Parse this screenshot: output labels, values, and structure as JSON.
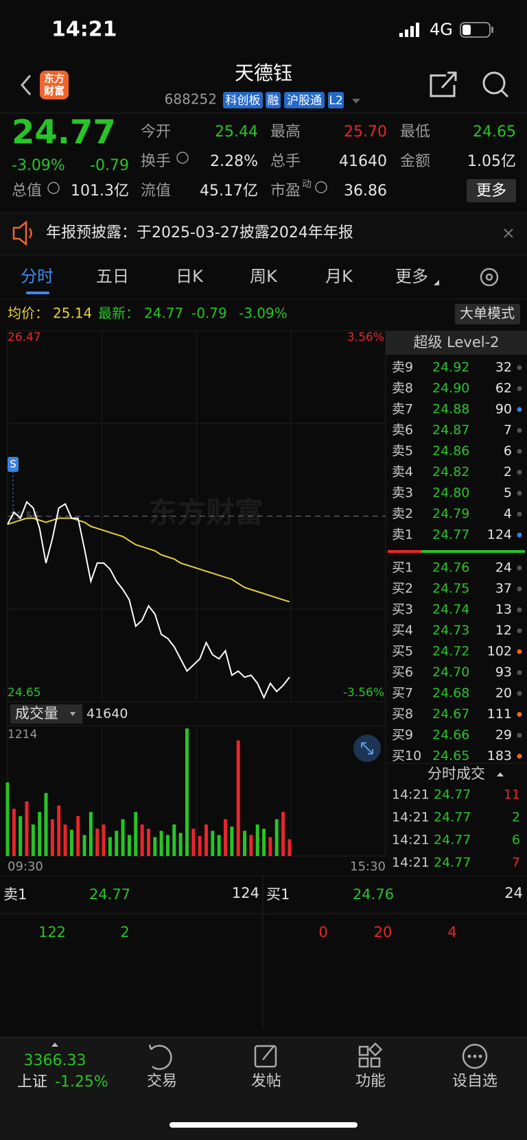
{
  "status_bar": {
    "time": "14:21",
    "network": "4G"
  },
  "header": {
    "logo": [
      "东方",
      "财富"
    ],
    "title": "天德钰",
    "code": "688252",
    "tags": [
      "科创板",
      "融",
      "沪股通",
      "L2"
    ]
  },
  "quote": {
    "price": "24.77",
    "change_pct": "-3.09%",
    "change": "-0.79",
    "left_stat": {
      "label": "总值",
      "value": "101.3亿"
    },
    "stats": [
      {
        "label": "今开",
        "value": "25.44",
        "color": "#27c427"
      },
      {
        "label": "最高",
        "value": "25.70",
        "color": "#e8262b"
      },
      {
        "label": "最低",
        "value": "24.65",
        "color": "#27c427"
      },
      {
        "label": "换手",
        "value": "2.28%",
        "color": "#e6e6e6"
      },
      {
        "label": "总手",
        "value": "41640",
        "color": "#e6e6e6"
      },
      {
        "label": "金额",
        "value": "1.05亿",
        "color": "#e6e6e6"
      },
      {
        "label": "流值",
        "value": "45.17亿",
        "color": "#e6e6e6"
      },
      {
        "label": "市盈",
        "value": "36.86",
        "color": "#e6e6e6",
        "superscript": "动"
      }
    ],
    "more_button": "更多"
  },
  "notice": "年报预披露：于2025-03-27披露2024年年报",
  "tabs": [
    "分时",
    "五日",
    "日K",
    "周K",
    "月K",
    "更多"
  ],
  "info": {
    "avg_label": "均价：",
    "avg": "25.14",
    "latest_label": "最新：",
    "latest": "24.77",
    "change": "-0.79",
    "change_pct": "-3.09%",
    "mode_button": "大单模式"
  },
  "intraday": {
    "price_top": 26.47,
    "price_bottom": 24.65,
    "prev_close": 25.56,
    "pct_top": "3.56%",
    "pct_bottom": "-3.56%",
    "marker": "S",
    "watermark": "东方财富",
    "price": [
      25.52,
      25.58,
      25.55,
      25.63,
      25.6,
      25.5,
      25.33,
      25.45,
      25.6,
      25.62,
      25.55,
      25.55,
      25.4,
      25.24,
      25.33,
      25.33,
      25.3,
      25.24,
      25.2,
      25.15,
      25.02,
      25.05,
      25.12,
      25.08,
      24.98,
      24.96,
      24.92,
      24.86,
      24.8,
      24.83,
      24.86,
      24.94,
      24.88,
      24.86,
      24.9,
      24.78,
      24.8,
      24.77,
      24.78,
      24.74,
      24.67,
      24.74,
      24.7,
      24.73,
      24.77
    ],
    "avg": [
      25.52,
      25.53,
      25.54,
      25.55,
      25.55,
      25.54,
      25.53,
      25.54,
      25.55,
      25.55,
      25.55,
      25.54,
      25.53,
      25.51,
      25.5,
      25.49,
      25.48,
      25.47,
      25.46,
      25.44,
      25.42,
      25.41,
      25.4,
      25.39,
      25.37,
      25.36,
      25.35,
      25.33,
      25.32,
      25.31,
      25.3,
      25.29,
      25.28,
      25.27,
      25.26,
      25.25,
      25.23,
      25.21,
      25.2,
      25.19,
      25.18,
      25.17,
      25.16,
      25.15,
      25.14
    ]
  },
  "volume": {
    "label": "成交量",
    "total": "41640",
    "max": 1214,
    "time_start": "09:30",
    "time_end": "15:30",
    "values": [
      700,
      450,
      380,
      520,
      300,
      420,
      600,
      350,
      480,
      300,
      250,
      380,
      200,
      420,
      260,
      300,
      180,
      240,
      350,
      200,
      420,
      300,
      260,
      180,
      240,
      200,
      300,
      220,
      1214,
      260,
      190,
      300,
      240,
      200,
      350,
      280,
      1100,
      240,
      200,
      300,
      260,
      180,
      350,
      420,
      160
    ]
  },
  "level2": {
    "title": "超级 Level-2",
    "asks": [
      {
        "label": "卖9",
        "price": "24.92",
        "qty": "32",
        "dot": "#555555"
      },
      {
        "label": "卖8",
        "price": "24.90",
        "qty": "62",
        "dot": "#555555"
      },
      {
        "label": "卖7",
        "price": "24.88",
        "qty": "90",
        "dot": "#3b82e0"
      },
      {
        "label": "卖6",
        "price": "24.87",
        "qty": "7",
        "dot": "#555555"
      },
      {
        "label": "卖5",
        "price": "24.86",
        "qty": "6",
        "dot": "#555555"
      },
      {
        "label": "卖4",
        "price": "24.82",
        "qty": "2",
        "dot": "#555555"
      },
      {
        "label": "卖3",
        "price": "24.80",
        "qty": "5",
        "dot": "#555555"
      },
      {
        "label": "卖2",
        "price": "24.79",
        "qty": "4",
        "dot": "#555555"
      },
      {
        "label": "卖1",
        "price": "24.77",
        "qty": "124",
        "dot": "#3b82e0"
      }
    ],
    "bids": [
      {
        "label": "买1",
        "price": "24.76",
        "qty": "24",
        "dot": "#555555"
      },
      {
        "label": "买2",
        "price": "24.75",
        "qty": "37",
        "dot": "#555555"
      },
      {
        "label": "买3",
        "price": "24.74",
        "qty": "13",
        "dot": "#555555"
      },
      {
        "label": "买4",
        "price": "24.73",
        "qty": "12",
        "dot": "#555555"
      },
      {
        "label": "买5",
        "price": "24.72",
        "qty": "102",
        "dot": "#f0652a"
      },
      {
        "label": "买6",
        "price": "24.70",
        "qty": "93",
        "dot": "#555555"
      },
      {
        "label": "买7",
        "price": "24.68",
        "qty": "20",
        "dot": "#555555"
      },
      {
        "label": "买8",
        "price": "24.67",
        "qty": "111",
        "dot": "#f0652a"
      },
      {
        "label": "买9",
        "price": "24.66",
        "qty": "29",
        "dot": "#555555"
      },
      {
        "label": "买10",
        "price": "24.65",
        "qty": "183",
        "dot": "#f0652a"
      }
    ]
  },
  "trades": {
    "title": "分时成交",
    "rows": [
      {
        "time": "14:21",
        "price": "24.77",
        "qty": "11",
        "color": "#e8262b"
      },
      {
        "time": "14:21",
        "price": "24.77",
        "qty": "2",
        "color": "#27c427"
      },
      {
        "time": "14:21",
        "price": "24.77",
        "qty": "6",
        "color": "#27c427"
      },
      {
        "time": "14:21",
        "price": "24.77",
        "qty": "7",
        "color": "#e8262b"
      }
    ]
  },
  "bottom_quote": {
    "ask_label": "卖1",
    "ask_price": "24.77",
    "ask_qty": "124",
    "bid_label": "买1",
    "bid_price": "24.76",
    "bid_qty": "24",
    "ask_details": [
      "122",
      "2"
    ],
    "bid_details": [
      "0",
      "20",
      "4"
    ]
  },
  "tabbar": {
    "index_value": "3366.33",
    "index_name": "上证",
    "index_change": "-1.25%",
    "items": [
      "交易",
      "发帖",
      "功能",
      "设自选"
    ]
  }
}
